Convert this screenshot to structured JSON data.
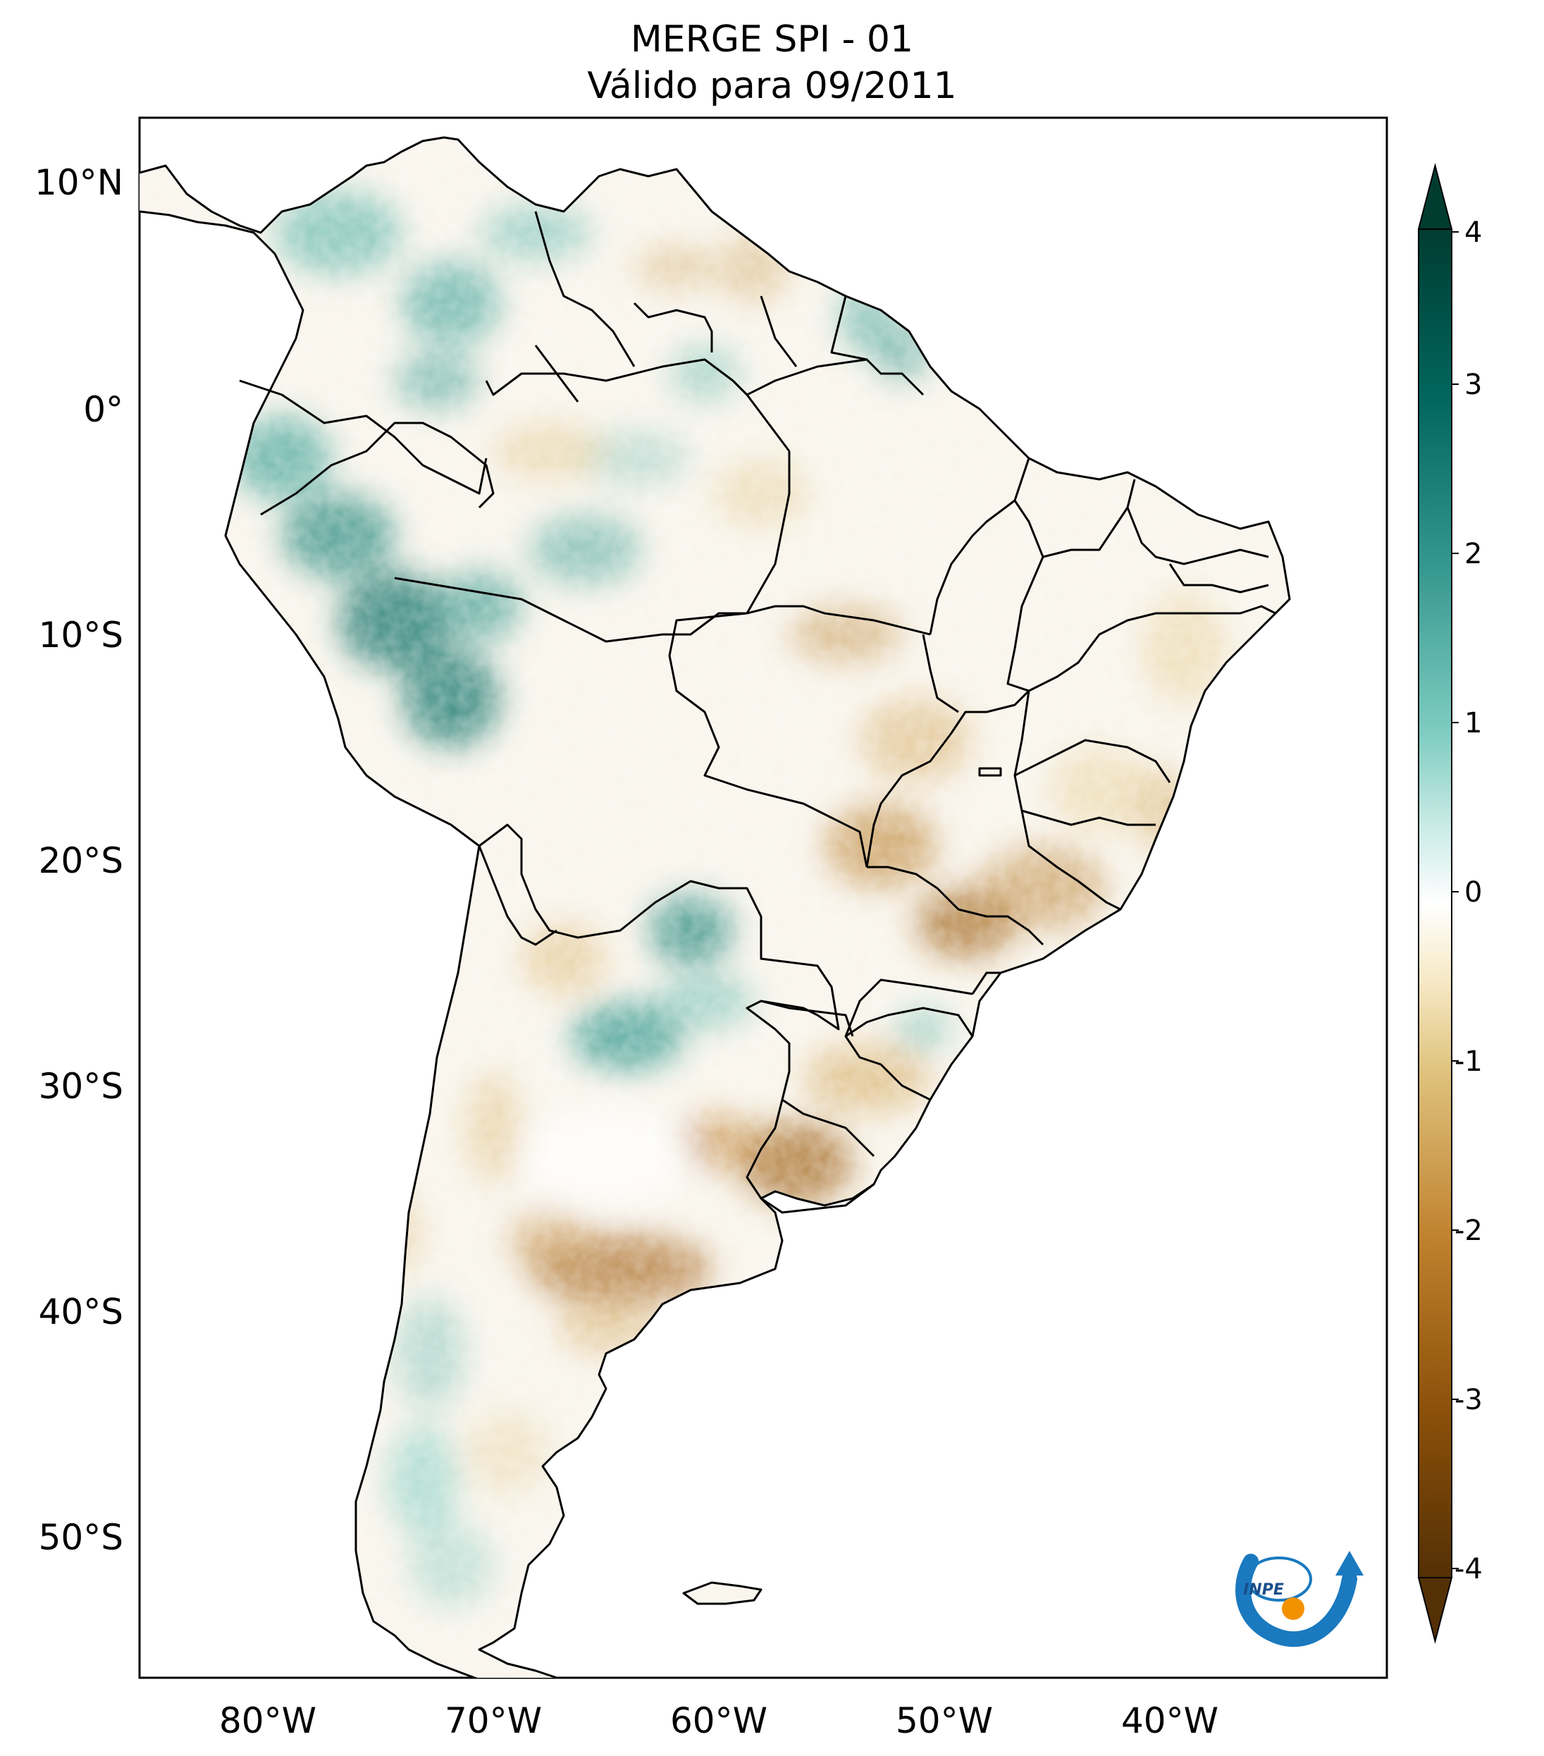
{
  "title": {
    "line1": "MERGE   SPI - 01",
    "line2": "Válido para 09/2011"
  },
  "axes": {
    "lat_ticks": [
      "10°N",
      "0°",
      "10°S",
      "20°S",
      "30°S",
      "40°S",
      "50°S"
    ],
    "lon_ticks": [
      "80°W",
      "70°W",
      "60°W",
      "50°W",
      "40°W"
    ]
  },
  "colorbar": {
    "ticks": [
      "4",
      "3",
      "2",
      "1",
      "0",
      "-1",
      "-2",
      "-3",
      "-4"
    ],
    "colors": [
      "#003c30",
      "#01665e",
      "#35978f",
      "#80cdc1",
      "#c7eae5",
      "#f5f5f5",
      "#f6e8c3",
      "#dfc27d",
      "#bf812d",
      "#8c510a",
      "#543005"
    ]
  },
  "logo": {
    "text": "INPE"
  }
}
